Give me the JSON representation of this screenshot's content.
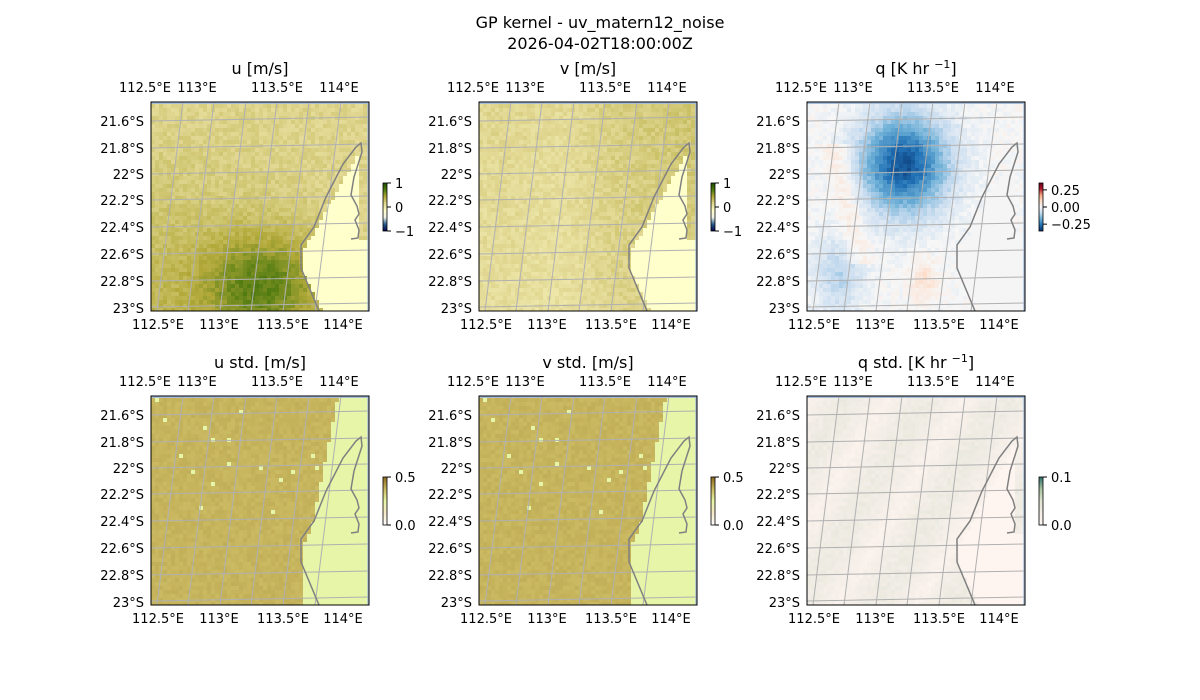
{
  "suptitle": "GP kernel - uv_matern12_noise",
  "subtitle": "2026-04-02T18:00:00Z",
  "chart_data": {
    "type": "heatmap",
    "lon_ticks": [
      "112.5°E",
      "113°E",
      "113.5°E",
      "114°E"
    ],
    "lat_ticks": [
      "21.6°S",
      "21.8°S",
      "22°S",
      "22.2°S",
      "22.4°S",
      "22.6°S",
      "22.8°S",
      "23°S"
    ],
    "grid": true,
    "panels": [
      {
        "title": "u [m/s]",
        "sup": "",
        "title_end": "",
        "cbar_ticks": [
          "1",
          "0",
          "−1"
        ],
        "cbar_range": [
          -1,
          1
        ],
        "cmap": [
          "#00004a",
          "#2a5f8f",
          "#f3f3e8",
          "#fdfbc8",
          "#e0d690",
          "#b2a93a",
          "#4e7a10",
          "#1c4a00"
        ],
        "land": "#ffffcc"
      },
      {
        "title": "v [m/s]",
        "sup": "",
        "title_end": "",
        "cbar_ticks": [
          "1",
          "0",
          "−1"
        ],
        "cbar_range": [
          -1,
          1
        ],
        "cmap": [
          "#00004a",
          "#2a5f8f",
          "#f3f3e8",
          "#fdfbc8",
          "#e0d690",
          "#b2a93a",
          "#4e7a10",
          "#1c4a00"
        ],
        "land": "#ffffcc"
      },
      {
        "title": "q [K hr ",
        "sup": "−1",
        "title_end": "]",
        "cbar_ticks": [
          "0.25",
          "0.00",
          "−0.25"
        ],
        "cbar_range": [
          -0.35,
          0.35
        ],
        "cmap": [
          "#08306b",
          "#2171b5",
          "#6baed6",
          "#c6dbef",
          "#f7f7f7",
          "#fddbc7",
          "#f4a582",
          "#b2182b",
          "#67001f"
        ],
        "land": "#f5f5f5"
      },
      {
        "title": "u std. [m/s]",
        "sup": "",
        "title_end": "",
        "cbar_ticks": [
          "0.5",
          "0.0"
        ],
        "cbar_range": [
          0,
          0.5
        ],
        "cmap": [
          "#ffffff",
          "#f6e9c8",
          "#e8f5a8",
          "#c9b860",
          "#8a6a20"
        ],
        "land": "#e6f5a8"
      },
      {
        "title": "v std. [m/s]",
        "sup": "",
        "title_end": "",
        "cbar_ticks": [
          "0.5",
          "0.0"
        ],
        "cbar_range": [
          0,
          0.5
        ],
        "cmap": [
          "#ffffff",
          "#f6e9c8",
          "#e8f5a8",
          "#c9b860",
          "#8a6a20"
        ],
        "land": "#e6f5a8"
      },
      {
        "title": "q std. [K hr ",
        "sup": "−1",
        "title_end": "]",
        "cbar_ticks": [
          "0.1",
          "0.0"
        ],
        "cbar_range": [
          0,
          0.1
        ],
        "cmap": [
          "#fff5f0",
          "#f2ede6",
          "#dfe3d2",
          "#a8c3a0",
          "#2f6e6e"
        ],
        "land": "#fff5f0"
      }
    ],
    "colors": {
      "ocean_mask": "#a6bddb",
      "gridline": "#b0b0b0",
      "coastline": "#808080"
    }
  }
}
